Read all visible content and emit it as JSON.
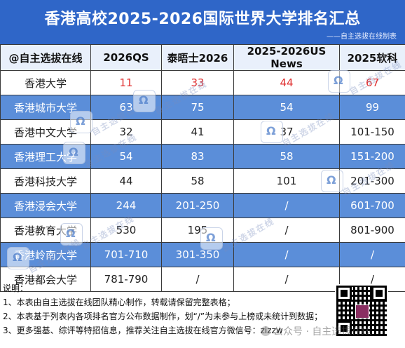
{
  "header": {
    "title": "香港高校2025-2026国际世界大学排名汇总",
    "subtitle": "——自主选拔在线制表"
  },
  "table": {
    "columns": [
      "@自主选拔在线",
      "2026QS",
      "泰晤士2026",
      "2025-2026US News",
      "2025软科"
    ],
    "rows": [
      {
        "name": "香港大学",
        "cells": [
          "11",
          "33",
          "44",
          "67"
        ],
        "highlight": true
      },
      {
        "name": "香港城市大学",
        "cells": [
          "63",
          "75",
          "54",
          "99"
        ],
        "highlight": false
      },
      {
        "name": "香港中文大学",
        "cells": [
          "32",
          "41",
          "37",
          "101-150"
        ],
        "highlight": false
      },
      {
        "name": "香港理工大学",
        "cells": [
          "54",
          "83",
          "58",
          "151-200"
        ],
        "highlight": false
      },
      {
        "name": "香港科技大学",
        "cells": [
          "44",
          "58",
          "101",
          "201-300"
        ],
        "highlight": false
      },
      {
        "name": "香港浸会大学",
        "cells": [
          "244",
          "201-250",
          "/",
          "601-700"
        ],
        "highlight": false
      },
      {
        "name": "香港教育大学",
        "cells": [
          "530",
          "195",
          "/",
          "801-900"
        ],
        "highlight": false
      },
      {
        "name": "香港岭南大学",
        "cells": [
          "701-710",
          "301-350",
          "/",
          "/"
        ],
        "highlight": false
      },
      {
        "name": "香港都会大学",
        "cells": [
          "781-790",
          "/",
          "/",
          "/"
        ],
        "highlight": false
      }
    ]
  },
  "notes": {
    "heading": "说明：",
    "items": [
      "1、本表由自主选拔在线团队精心制作，转载请保留完整表格；",
      "2、本表基于列表内各项排名官方公布数据制作，划“/”为未参与上榜或未统计到数据；",
      "3、更多强基、综评等特招信息，推荐关注自主选拔在线官方微信号：zizzw"
    ]
  },
  "watermark": {
    "text": "自主选拔在线",
    "footer": "公众号 · 自主选拔在线"
  },
  "colors": {
    "banner": "#2f66c8",
    "row_alt": "#5b8ed9",
    "highlight_text": "#e03030"
  }
}
